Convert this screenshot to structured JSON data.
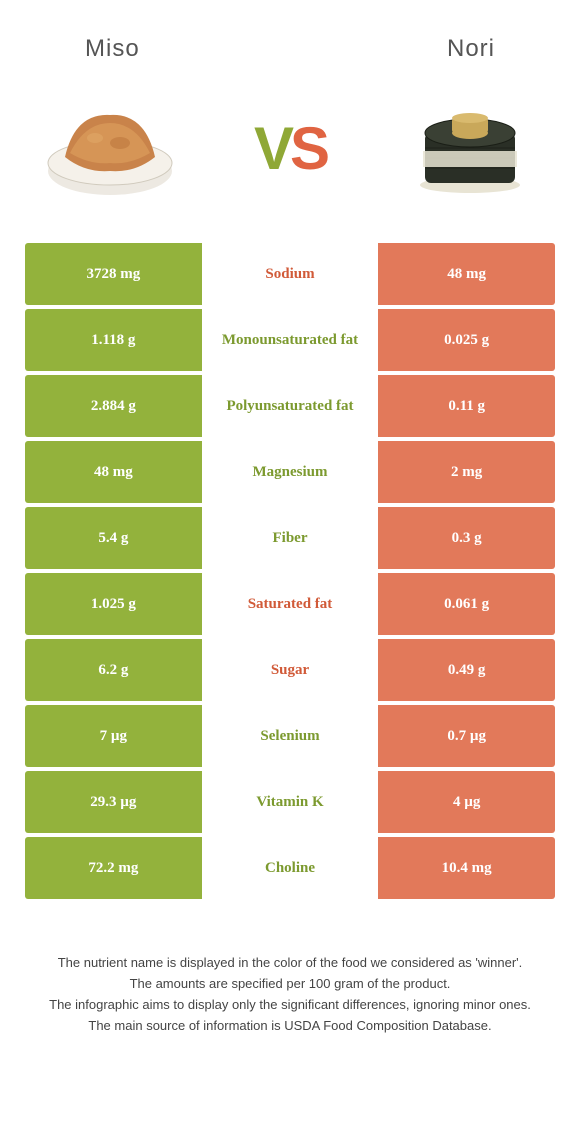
{
  "header": {
    "left": "Miso",
    "right": "Nori"
  },
  "vs": {
    "v": "V",
    "s": "S"
  },
  "colors": {
    "green": "#93b23c",
    "orange": "#e2795a",
    "text_green": "#7c9a2f",
    "text_orange": "#d15a38",
    "bg": "#ffffff"
  },
  "rows": [
    {
      "left": "3728 mg",
      "label": "Sodium",
      "right": "48 mg",
      "winner": "orange"
    },
    {
      "left": "1.118 g",
      "label": "Monounsaturated fat",
      "right": "0.025 g",
      "winner": "green"
    },
    {
      "left": "2.884 g",
      "label": "Polyunsaturated fat",
      "right": "0.11 g",
      "winner": "green"
    },
    {
      "left": "48 mg",
      "label": "Magnesium",
      "right": "2 mg",
      "winner": "green"
    },
    {
      "left": "5.4 g",
      "label": "Fiber",
      "right": "0.3 g",
      "winner": "green"
    },
    {
      "left": "1.025 g",
      "label": "Saturated fat",
      "right": "0.061 g",
      "winner": "orange"
    },
    {
      "left": "6.2 g",
      "label": "Sugar",
      "right": "0.49 g",
      "winner": "orange"
    },
    {
      "left": "7 µg",
      "label": "Selenium",
      "right": "0.7 µg",
      "winner": "green"
    },
    {
      "left": "29.3 µg",
      "label": "Vitamin K",
      "right": "4 µg",
      "winner": "green"
    },
    {
      "left": "72.2 mg",
      "label": "Choline",
      "right": "10.4 mg",
      "winner": "green"
    }
  ],
  "footer": {
    "l1": "The nutrient name is displayed in the color of the food we considered as 'winner'.",
    "l2": "The amounts are specified per 100 gram of the product.",
    "l3": "The infographic aims to display only the significant differences, ignoring minor ones.",
    "l4": "The main source of information is USDA Food Composition Database."
  }
}
